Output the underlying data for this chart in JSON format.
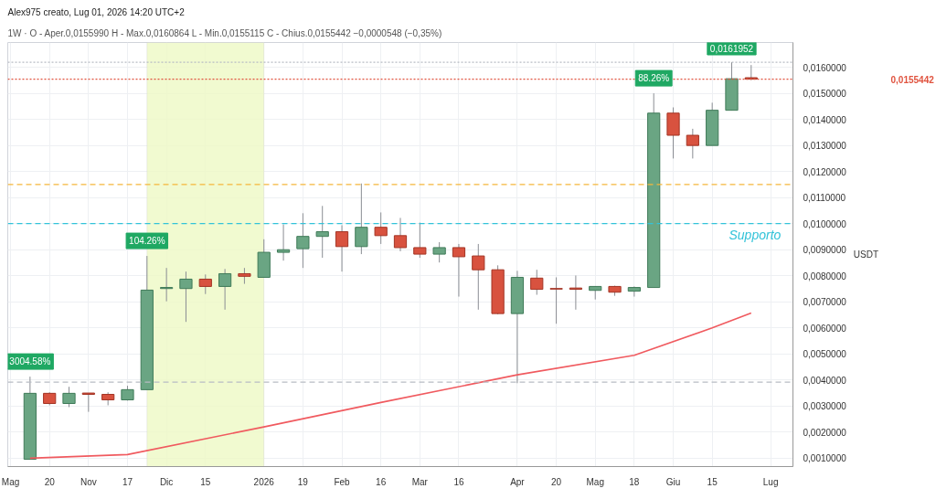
{
  "chart_data": {
    "type": "candlestick",
    "title": "Alex975 creato, Lug 01, 2026 14:20 UTC+2",
    "subtitle": "1W · O - Aper.0,0155990  H - Max.0,0160864  L - Min.0,0155115  C - Chius.0,0155442  −0,0000548 (−0,35%)",
    "ylabel": "USDT",
    "x": [
      "2025-10-13",
      "2025-10-20",
      "2025-10-27",
      "2025-11-03",
      "2025-11-10",
      "2025-11-17",
      "2025-11-24",
      "2025-12-01",
      "2025-12-08",
      "2025-12-15",
      "2025-12-22",
      "2025-12-29",
      "2026-01-05",
      "2026-01-12",
      "2026-01-19",
      "2026-01-26",
      "2026-02-02",
      "2026-02-09",
      "2026-02-16",
      "2026-02-23",
      "2026-03-02",
      "2026-03-09",
      "2026-03-16",
      "2026-03-23",
      "2026-03-30",
      "2026-04-06",
      "2026-04-13",
      "2026-04-20",
      "2026-04-27",
      "2026-05-04",
      "2026-05-11",
      "2026-05-18",
      "2026-05-25",
      "2026-06-01",
      "2026-06-08",
      "2026-06-15",
      "2026-06-22",
      "2026-06-29"
    ],
    "ohlc": [
      [
        0.00096,
        0.00413,
        0.00096,
        0.00349
      ],
      [
        0.00349,
        0.00353,
        0.00303,
        0.0031
      ],
      [
        0.0031,
        0.00374,
        0.00296,
        0.00349
      ],
      [
        0.0035,
        0.0035,
        0.00278,
        0.00345
      ],
      [
        0.00345,
        0.00353,
        0.00303,
        0.00324
      ],
      [
        0.00324,
        0.00378,
        0.00321,
        0.00363
      ],
      [
        0.00363,
        0.00876,
        0.00363,
        0.00745
      ],
      [
        0.00751,
        0.0083,
        0.00702,
        0.00755
      ],
      [
        0.00751,
        0.00816,
        0.00623,
        0.00787
      ],
      [
        0.00787,
        0.00805,
        0.0073,
        0.00759
      ],
      [
        0.00759,
        0.00826,
        0.0067,
        0.00808
      ],
      [
        0.00808,
        0.0083,
        0.00769,
        0.00798
      ],
      [
        0.00794,
        0.0094,
        0.00794,
        0.0089
      ],
      [
        0.0089,
        0.00997,
        0.00858,
        0.009
      ],
      [
        0.00904,
        0.0104,
        0.0083,
        0.00951
      ],
      [
        0.00951,
        0.01068,
        0.00869,
        0.00969
      ],
      [
        0.00969,
        0.00994,
        0.00816,
        0.00912
      ],
      [
        0.00912,
        0.01154,
        0.00883,
        0.00986
      ],
      [
        0.00986,
        0.01043,
        0.00922,
        0.00954
      ],
      [
        0.00954,
        0.01022,
        0.00894,
        0.00908
      ],
      [
        0.00908,
        0.01004,
        0.00869,
        0.00883
      ],
      [
        0.00883,
        0.00929,
        0.00851,
        0.00908
      ],
      [
        0.00908,
        0.00922,
        0.0072,
        0.00873
      ],
      [
        0.00876,
        0.00922,
        0.0067,
        0.00823
      ],
      [
        0.00823,
        0.0084,
        0.00652,
        0.00655
      ],
      [
        0.00655,
        0.00819,
        0.00388,
        0.00794
      ],
      [
        0.00791,
        0.00823,
        0.00727,
        0.00748
      ],
      [
        0.00751,
        0.00794,
        0.00616,
        0.00749
      ],
      [
        0.00753,
        0.00801,
        0.0067,
        0.00748
      ],
      [
        0.00744,
        0.0076,
        0.00709,
        0.00759
      ],
      [
        0.00759,
        0.00762,
        0.00723,
        0.00737
      ],
      [
        0.00741,
        0.00759,
        0.0072,
        0.00755
      ],
      [
        0.00755,
        0.015,
        0.00755,
        0.01424
      ],
      [
        0.01424,
        0.01446,
        0.0125,
        0.01339
      ],
      [
        0.01339,
        0.01364,
        0.0125,
        0.013
      ],
      [
        0.013,
        0.01464,
        0.013,
        0.01435
      ],
      [
        0.01435,
        0.0161952,
        0.01435,
        0.01556
      ],
      [
        0.015599,
        0.0160864,
        0.0155115,
        0.0155442
      ]
    ],
    "series": [
      {
        "type": "line",
        "color": "#f05a5f",
        "x": [
          "2025-10-13",
          "2025-11-17",
          "2026-01-05",
          "2026-02-16",
          "2026-04-06",
          "2026-05-18",
          "2026-06-15",
          "2026-06-29"
        ],
        "values": [
          0.001,
          0.00114,
          0.0022,
          0.00314,
          0.0042,
          0.00495,
          0.006,
          0.00657
        ]
      }
    ],
    "xlim": [
      "2025-10-05",
      "2026-07-14"
    ],
    "xticks": [
      {
        "value": "2025-10-06",
        "label": "Mag"
      },
      {
        "value": "2025-10-20",
        "label": "20"
      },
      {
        "value": "2025-11-03",
        "label": "Nov"
      },
      {
        "value": "2025-11-17",
        "label": "17"
      },
      {
        "value": "2025-12-01",
        "label": "Dic"
      },
      {
        "value": "2025-12-15",
        "label": "15"
      },
      {
        "value": "2026-01-05",
        "label": "2026"
      },
      {
        "value": "2026-01-19",
        "label": "19"
      },
      {
        "value": "2026-02-02",
        "label": "Feb"
      },
      {
        "value": "2026-02-16",
        "label": "16"
      },
      {
        "value": "2026-03-02",
        "label": "Mar"
      },
      {
        "value": "2026-03-16",
        "label": "16"
      },
      {
        "value": "2026-04-06",
        "label": "Apr"
      },
      {
        "value": "2026-04-20",
        "label": "20"
      },
      {
        "value": "2026-05-04",
        "label": "Mag"
      },
      {
        "value": "2026-05-18",
        "label": "18"
      },
      {
        "value": "2026-06-01",
        "label": "Giu"
      },
      {
        "value": "2026-06-15",
        "label": "15"
      },
      {
        "value": "2026-07-06",
        "label": "Lug"
      }
    ],
    "ylim": [
      0.00068,
      0.01695
    ],
    "yticks": [
      {
        "value": 0.001,
        "label": "0,0010000"
      },
      {
        "value": 0.002,
        "label": "0,0020000"
      },
      {
        "value": 0.003,
        "label": "0,0030000"
      },
      {
        "value": 0.004,
        "label": "0,0040000"
      },
      {
        "value": 0.005,
        "label": "0,0050000"
      },
      {
        "value": 0.006,
        "label": "0,0060000"
      },
      {
        "value": 0.007,
        "label": "0,0070000"
      },
      {
        "value": 0.008,
        "label": "0,0080000"
      },
      {
        "value": 0.009,
        "label": "0,0090000"
      },
      {
        "value": 0.01,
        "label": "0,0100000"
      },
      {
        "value": 0.011,
        "label": "0,0110000"
      },
      {
        "value": 0.012,
        "label": "0,0120000"
      },
      {
        "value": 0.013,
        "label": "0,0130000"
      },
      {
        "value": 0.014,
        "label": "0,0140000"
      },
      {
        "value": 0.015,
        "label": "0,0150000"
      },
      {
        "value": 0.016,
        "label": "0,0160000"
      }
    ],
    "ref_lines": [
      {
        "axis": "y",
        "value": 0.0115,
        "color": "#f5b73b",
        "line_style": "dashed"
      },
      {
        "axis": "y",
        "value": 0.01,
        "label": "Supporto",
        "color": "#33c3d9",
        "line_style": "dashed"
      },
      {
        "axis": "y",
        "value": 0.00392,
        "color": "#b8bcc4",
        "line_style": "dashed"
      },
      {
        "axis": "y",
        "value": 0.0161952,
        "color": "#b8bcc4",
        "line_style": "dotted"
      },
      {
        "axis": "y",
        "value": 0.0155442,
        "label": "0,0155442",
        "color": "#e0533f",
        "line_style": "dotted"
      }
    ],
    "bands": [
      {
        "axis": "x",
        "from": "2025-11-24",
        "to": "2026-01-05",
        "color": "#eef9c4"
      }
    ],
    "annotations": [
      {
        "text": "3004.58%",
        "x": "2025-10-13",
        "y": 0.00413
      },
      {
        "text": "104.26%",
        "x": "2025-11-24",
        "y": 0.00876
      },
      {
        "text": "88.26%",
        "x": "2026-05-25",
        "y": 0.015
      },
      {
        "text": "0,0161952",
        "x": "2026-06-22",
        "y": 0.0161952
      }
    ],
    "grid": true
  }
}
